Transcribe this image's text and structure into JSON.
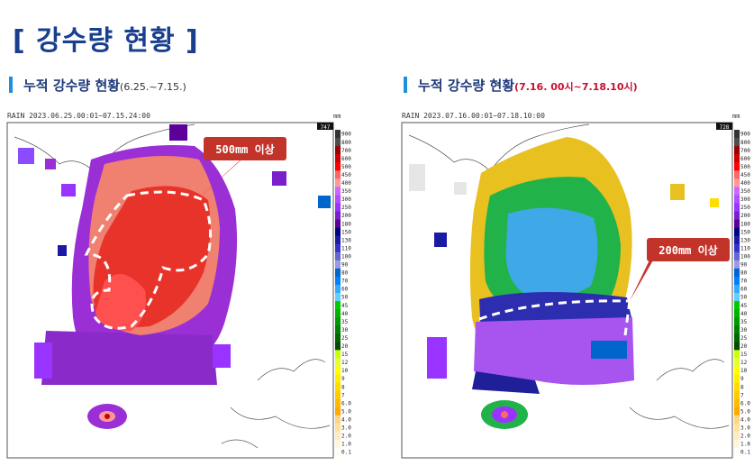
{
  "page": {
    "title": "[ 강수량 현황 ]"
  },
  "sections": [
    {
      "title": "누적 강수량 현황",
      "period": "(6.25.~7.15.)"
    },
    {
      "title": "누적 강수량 현황",
      "period": "(7.16. 00시~7.18.10시)"
    }
  ],
  "colors": {
    "accent": "#1a3f8f",
    "callout": "#c2342a",
    "period_red": "#c8102e"
  },
  "chart_data": [
    {
      "type": "heatmap",
      "header": "RAIN  2023.06.25.00:01~07.15.24:00",
      "max_badge": "747",
      "unit": "mm",
      "annotation": "500mm 이상",
      "colorbar": {
        "ticks": [
          "900",
          "800",
          "700",
          "600",
          "500",
          "450",
          "400",
          "350",
          "300",
          "250",
          "200",
          "180",
          "150",
          "130",
          "110",
          "100",
          "90",
          "80",
          "70",
          "60",
          "50",
          "45",
          "40",
          "35",
          "30",
          "25",
          "20",
          "15",
          "12",
          "10",
          "9",
          "8",
          "7",
          "6.0",
          "5.0",
          "4.0",
          "3.0",
          "2.0",
          "1.0",
          "0.1"
        ],
        "colors": [
          "#333333",
          "#4d4d4d",
          "#990000",
          "#cc0000",
          "#ff0000",
          "#ff6666",
          "#ff9999",
          "#cc66ff",
          "#b34dff",
          "#9933ff",
          "#7a1fcc",
          "#5c0099",
          "#000080",
          "#1a1aa3",
          "#3333cc",
          "#6666cc",
          "#9999e6",
          "#0066cc",
          "#0080ff",
          "#33aaff",
          "#66ccff",
          "#00cc00",
          "#00b300",
          "#009900",
          "#008000",
          "#006600",
          "#004d00",
          "#ccff00",
          "#e6ff33",
          "#ffff00",
          "#ffee00",
          "#ffdd00",
          "#ffcc00",
          "#ffbb00",
          "#ffaa00",
          "#ffd480",
          "#ffe0a0",
          "#ffebc0",
          "#fff5dd",
          "#fffdf5"
        ]
      }
    },
    {
      "type": "heatmap",
      "header": "RAIN  2023.07.16.00:01~07.18.10:00",
      "max_badge": "728",
      "unit": "mm",
      "annotation": "200mm 이상",
      "colorbar": {
        "ticks": [
          "900",
          "800",
          "700",
          "600",
          "500",
          "450",
          "400",
          "350",
          "300",
          "250",
          "200",
          "180",
          "150",
          "130",
          "110",
          "100",
          "90",
          "80",
          "70",
          "60",
          "50",
          "45",
          "40",
          "35",
          "30",
          "25",
          "20",
          "15",
          "12",
          "10",
          "9",
          "8",
          "7",
          "6.0",
          "5.0",
          "4.0",
          "3.0",
          "2.0",
          "1.0",
          "0.1"
        ],
        "colors": [
          "#333333",
          "#4d4d4d",
          "#990000",
          "#cc0000",
          "#ff0000",
          "#ff6666",
          "#ff9999",
          "#cc66ff",
          "#b34dff",
          "#9933ff",
          "#7a1fcc",
          "#5c0099",
          "#000080",
          "#1a1aa3",
          "#3333cc",
          "#6666cc",
          "#9999e6",
          "#0066cc",
          "#0080ff",
          "#33aaff",
          "#66ccff",
          "#00cc00",
          "#00b300",
          "#009900",
          "#008000",
          "#006600",
          "#004d00",
          "#ccff00",
          "#e6ff33",
          "#ffff00",
          "#ffee00",
          "#ffdd00",
          "#ffcc00",
          "#ffbb00",
          "#ffaa00",
          "#ffd480",
          "#ffe0a0",
          "#ffebc0",
          "#fff5dd",
          "#fffdf5"
        ]
      }
    }
  ]
}
